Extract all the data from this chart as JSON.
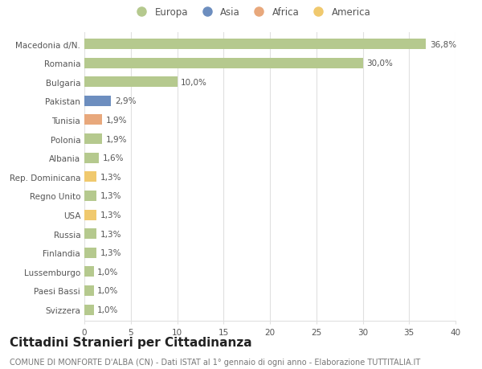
{
  "countries": [
    "Macedonia d/N.",
    "Romania",
    "Bulgaria",
    "Pakistan",
    "Tunisia",
    "Polonia",
    "Albania",
    "Rep. Dominicana",
    "Regno Unito",
    "USA",
    "Russia",
    "Finlandia",
    "Lussemburgo",
    "Paesi Bassi",
    "Svizzera"
  ],
  "values": [
    36.8,
    30.0,
    10.0,
    2.9,
    1.9,
    1.9,
    1.6,
    1.3,
    1.3,
    1.3,
    1.3,
    1.3,
    1.0,
    1.0,
    1.0
  ],
  "labels": [
    "36,8%",
    "30,0%",
    "10,0%",
    "2,9%",
    "1,9%",
    "1,9%",
    "1,6%",
    "1,3%",
    "1,3%",
    "1,3%",
    "1,3%",
    "1,3%",
    "1,0%",
    "1,0%",
    "1,0%"
  ],
  "continents": [
    "Europa",
    "Europa",
    "Europa",
    "Asia",
    "Africa",
    "Europa",
    "Europa",
    "America",
    "Europa",
    "America",
    "Europa",
    "Europa",
    "Europa",
    "Europa",
    "Europa"
  ],
  "continent_colors": {
    "Europa": "#b5c98e",
    "Asia": "#6d8ebf",
    "Africa": "#e8a87c",
    "America": "#f0c96e"
  },
  "legend_order": [
    "Europa",
    "Asia",
    "Africa",
    "America"
  ],
  "title": "Cittadini Stranieri per Cittadinanza",
  "subtitle": "COMUNE DI MONFORTE D'ALBA (CN) - Dati ISTAT al 1° gennaio di ogni anno - Elaborazione TUTTITALIA.IT",
  "xlim": [
    0,
    40
  ],
  "xticks": [
    0,
    5,
    10,
    15,
    20,
    25,
    30,
    35,
    40
  ],
  "background_color": "#ffffff",
  "grid_color": "#e0e0e0",
  "bar_height": 0.55,
  "title_fontsize": 11,
  "subtitle_fontsize": 7,
  "label_fontsize": 7.5,
  "tick_fontsize": 7.5,
  "legend_fontsize": 8.5
}
